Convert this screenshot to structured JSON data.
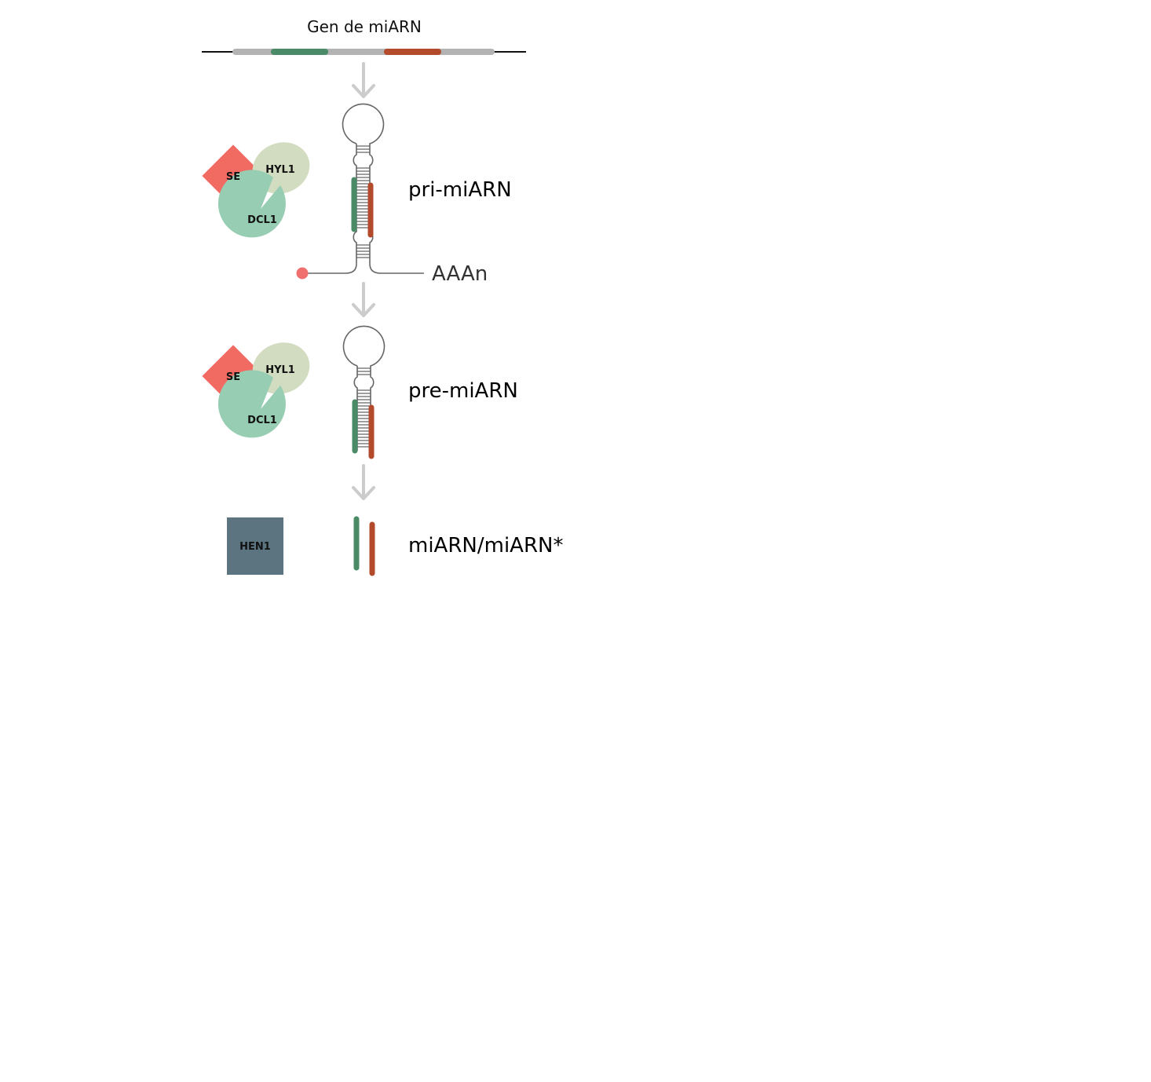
{
  "title": "Gen de miARN",
  "stages": {
    "pri": {
      "label": "pri-miARN",
      "tail": "AAAn"
    },
    "pre": {
      "label": "pre-miARN"
    },
    "duplex": {
      "label": "miARN/miARN*"
    }
  },
  "proteins": {
    "se": "SE",
    "hyl1": "HYL1",
    "dcl1": "DCL1",
    "hen1": "HEN1"
  },
  "colors": {
    "gene_line": "#111111",
    "gene_body": "#b3b3b3",
    "mirna": "#4a8a67",
    "mirna_star": "#b24a2b",
    "arrow": "#cccccc",
    "hairpin": "#666666",
    "cap": "#f07070",
    "se": "#f26b63",
    "hyl1": "#d2dcc0",
    "dcl1": "#97cdb3",
    "hen1": "#5b7480"
  },
  "icons": {
    "cap": "cap-dot-icon",
    "arrows": "down-arrow-icon"
  }
}
